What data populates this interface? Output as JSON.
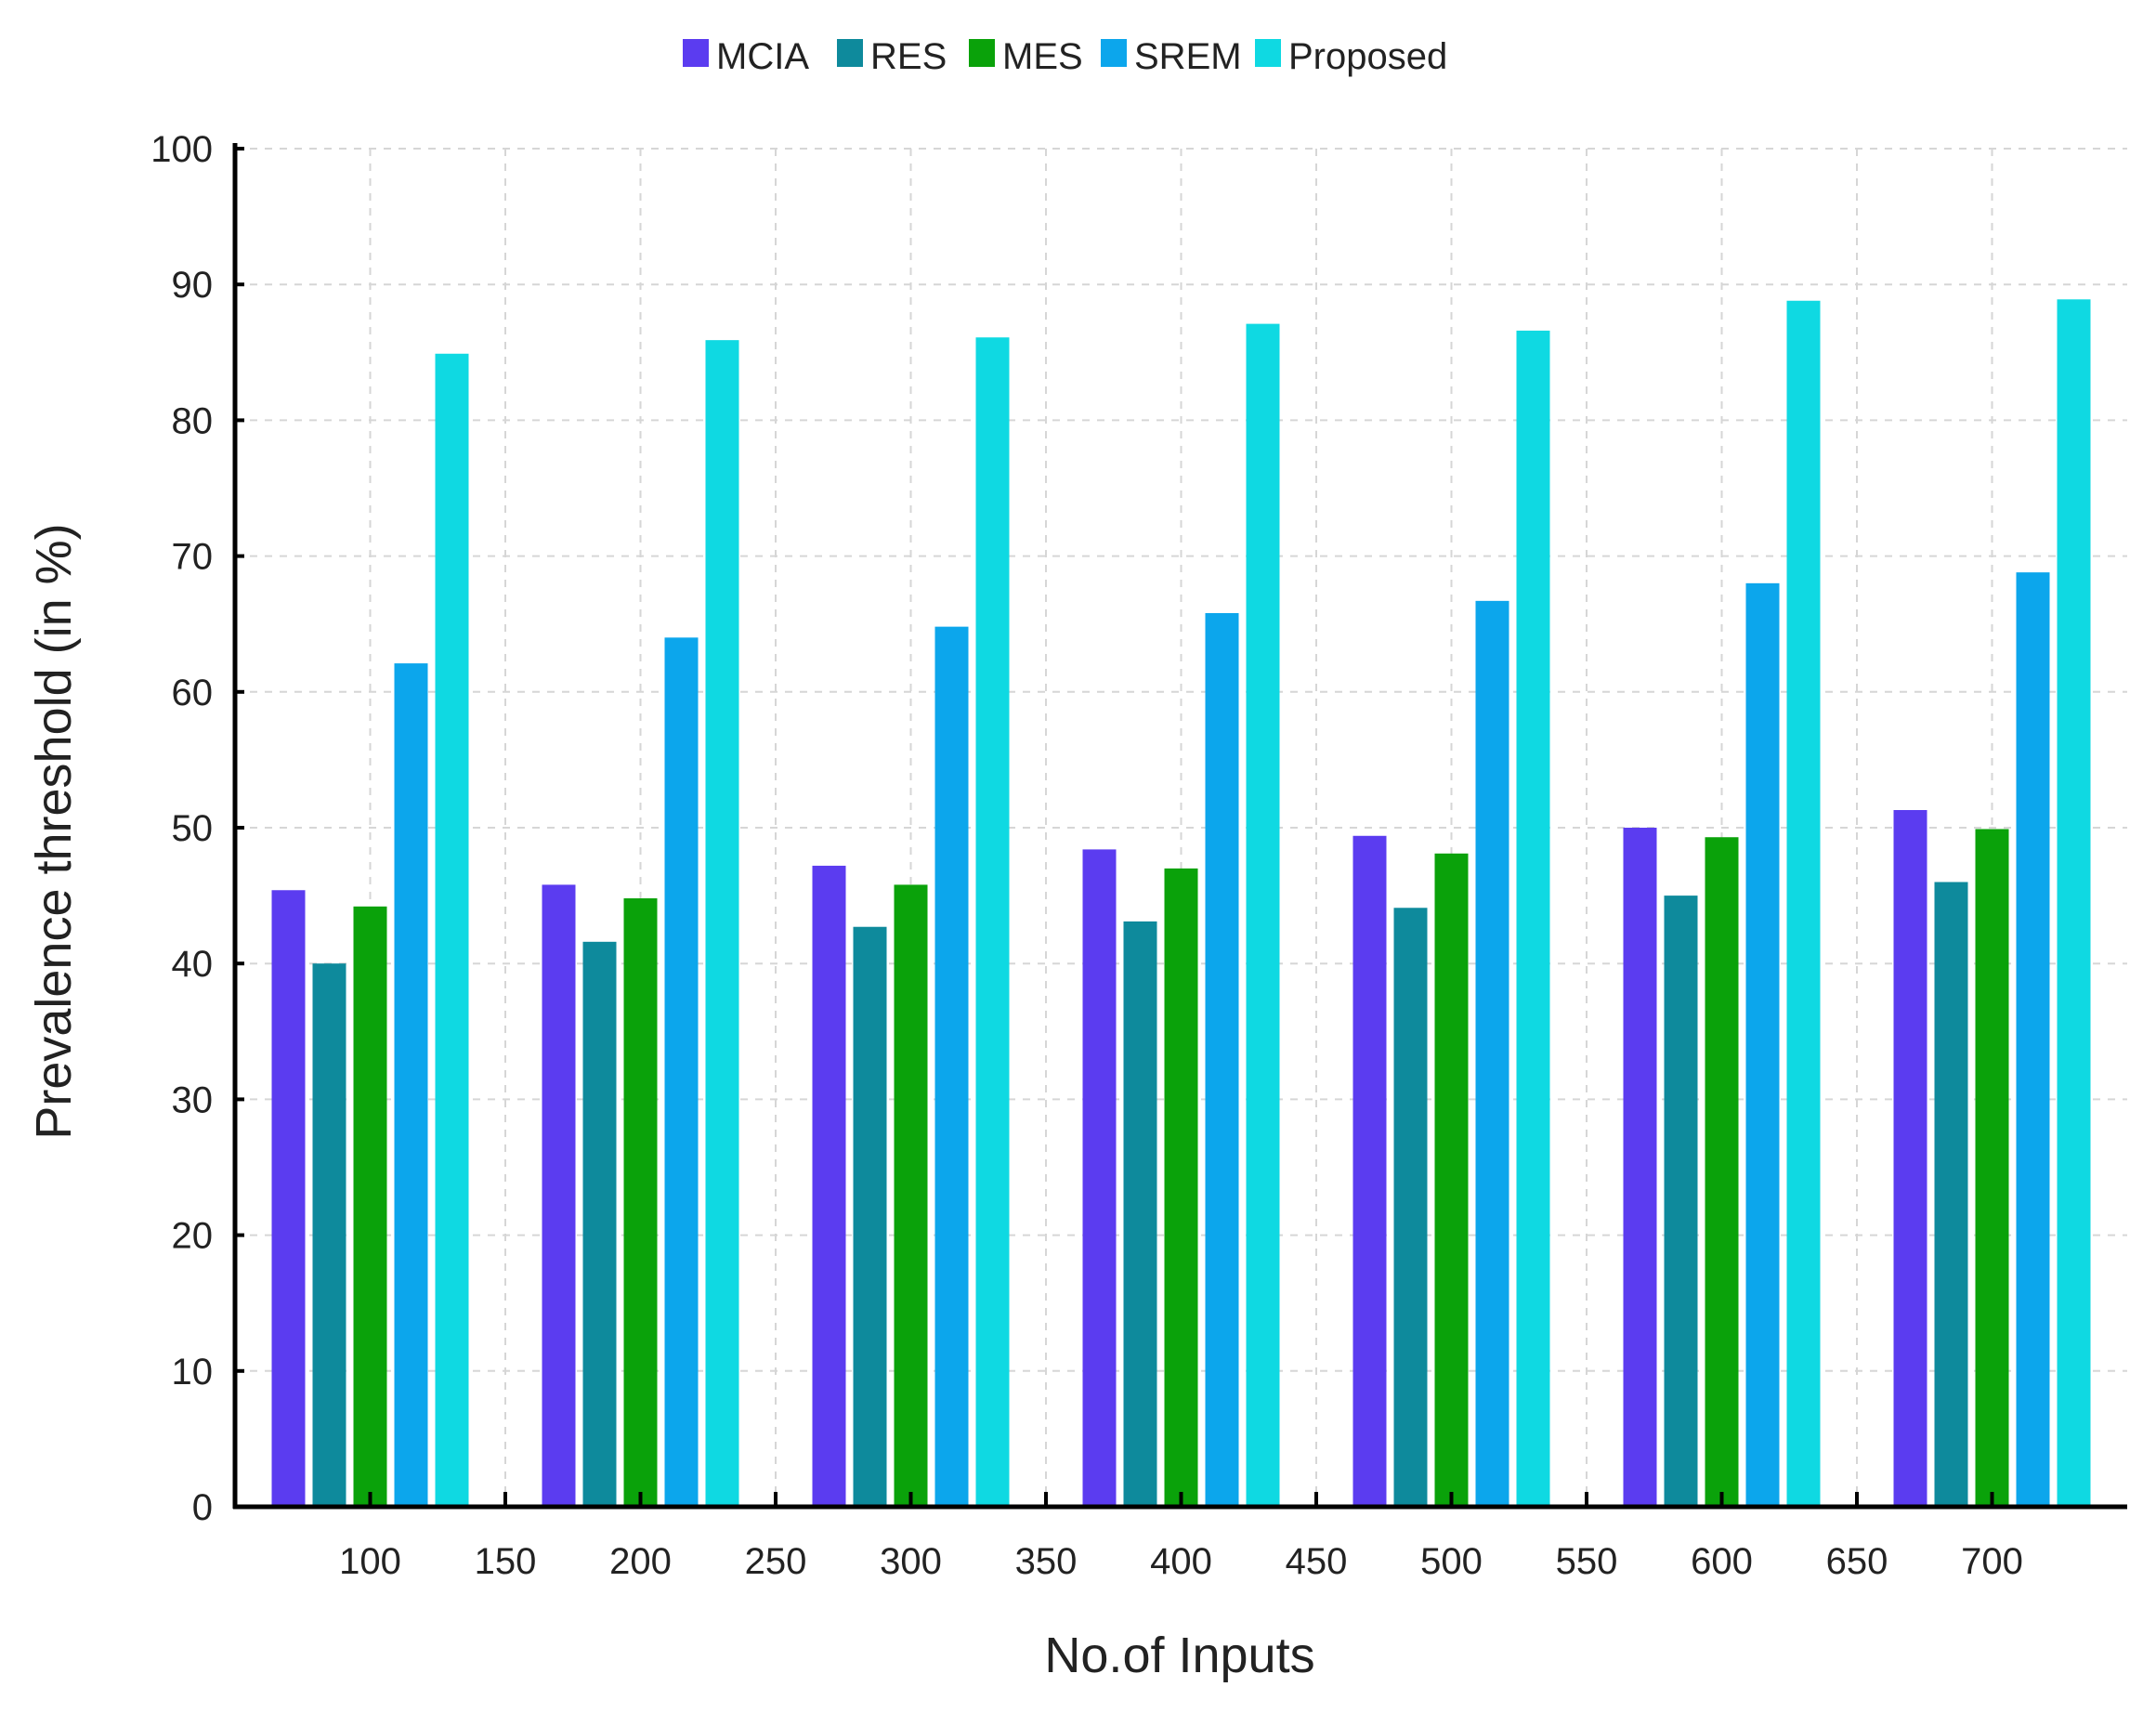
{
  "chart_data": {
    "type": "bar",
    "xlabel": "No.of Inputs",
    "ylabel": "Prevalence threshold (in %)",
    "ylim": [
      0,
      100
    ],
    "yticks": [
      0,
      10,
      20,
      30,
      40,
      50,
      60,
      70,
      80,
      90,
      100
    ],
    "xlim": [
      50,
      750
    ],
    "xticks": [
      100,
      150,
      200,
      250,
      300,
      350,
      400,
      450,
      500,
      550,
      600,
      650,
      700
    ],
    "grid": true,
    "legend_position": "top",
    "categories": [
      100,
      200,
      300,
      400,
      500,
      600,
      700
    ],
    "series": [
      {
        "name": "MCIA",
        "color": "#5b3cf0",
        "values": [
          45.4,
          45.8,
          47.2,
          48.4,
          49.4,
          50.0,
          51.3
        ]
      },
      {
        "name": "RES",
        "color": "#0e8a9c",
        "values": [
          40.0,
          41.6,
          42.7,
          43.1,
          44.1,
          45.0,
          46.0
        ]
      },
      {
        "name": "MES",
        "color": "#0aa20a",
        "values": [
          44.2,
          44.8,
          45.8,
          47.0,
          48.1,
          49.3,
          49.9
        ]
      },
      {
        "name": "SREM",
        "color": "#0ca6ec",
        "values": [
          62.1,
          64.0,
          64.8,
          65.8,
          66.7,
          68.0,
          68.8
        ]
      },
      {
        "name": "Proposed",
        "color": "#0fd9e2",
        "values": [
          84.9,
          85.9,
          86.1,
          87.1,
          86.6,
          88.8,
          88.9
        ]
      }
    ]
  }
}
